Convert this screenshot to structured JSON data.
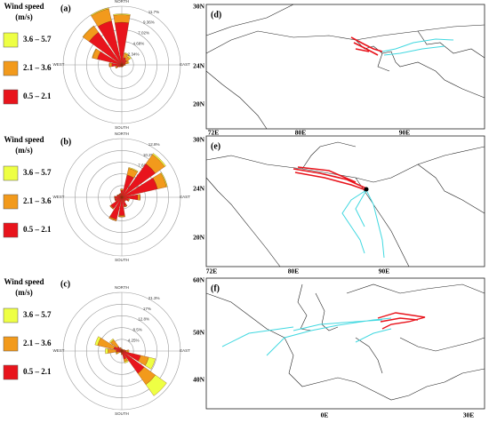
{
  "chart_data": [
    {
      "type": "polar_bar",
      "label": "(a)",
      "legend_title": "Wind speed",
      "legend_unit": "(m/s)",
      "categories": [
        "NORTH",
        null,
        null,
        null,
        "EAST",
        null,
        null,
        null,
        "SOUTH",
        null,
        null,
        null,
        "WEST",
        null,
        null,
        null
      ],
      "series": [
        {
          "name": "0.5 – 2.1",
          "color": "#e8141c",
          "values": [
            8.5,
            1.5,
            1.2,
            0.8,
            0.5,
            0.3,
            0.3,
            0.3,
            0.3,
            0.3,
            0.5,
            1,
            2,
            5,
            8,
            9
          ]
        },
        {
          "name": "2.1 – 3.6",
          "color": "#f29a1c",
          "values": [
            1.5,
            0.8,
            0.8,
            0.5,
            0.2,
            0.1,
            0.1,
            0.1,
            0.1,
            0.1,
            0.1,
            0.3,
            0.5,
            1,
            1.5,
            2.5
          ]
        },
        {
          "name": "3.6 – 5.7",
          "color": "#eeff44",
          "values": [
            0.2,
            0.2,
            0.3,
            0.2,
            0,
            0,
            0,
            0,
            0,
            0,
            0,
            0,
            0,
            0.1,
            0.1,
            0.2
          ]
        }
      ],
      "rlim": [
        0,
        11.7
      ],
      "rticks": [
        {
          "value": 2.34,
          "label": "2.34%"
        },
        {
          "value": 4.68,
          "label": "4.68%"
        },
        {
          "value": 7.02,
          "label": "7.02%"
        },
        {
          "value": 9.36,
          "label": "9.36%"
        },
        {
          "value": 11.7,
          "label": "11.7%"
        }
      ]
    },
    {
      "type": "polar_bar",
      "label": "(b)",
      "legend_title": "Wind speed",
      "legend_unit": "(m/s)",
      "categories": [
        "NORTH",
        null,
        null,
        null,
        "EAST",
        null,
        null,
        null,
        "SOUTH",
        null,
        null,
        null,
        "WEST",
        null,
        null,
        null
      ],
      "series": [
        {
          "name": "0.5 – 2.1",
          "color": "#e8141c",
          "values": [
            1.5,
            5,
            9,
            8,
            3.5,
            1.5,
            1,
            2,
            4,
            5,
            3,
            1.5,
            1.5,
            1,
            0.8,
            0.8
          ]
        },
        {
          "name": "2.1 – 3.6",
          "color": "#f29a1c",
          "values": [
            0.3,
            1.5,
            2.5,
            2,
            0.5,
            0.2,
            0.1,
            0.2,
            0.3,
            0.3,
            0.2,
            0.1,
            0.1,
            0.1,
            0.1,
            0.1
          ]
        },
        {
          "name": "3.6 – 5.7",
          "color": "#eeff44",
          "values": [
            0,
            0.2,
            0.3,
            0.2,
            0,
            0,
            0,
            0,
            0,
            0,
            0,
            0,
            0,
            0,
            0,
            0
          ]
        }
      ],
      "rlim": [
        0,
        12.8
      ],
      "rticks": [
        {
          "value": 2.56,
          "label": "2.56%"
        },
        {
          "value": 5.12,
          "label": "5.1%"
        },
        {
          "value": 7.68,
          "label": "7.68%"
        },
        {
          "value": 10.2,
          "label": "10.2%"
        },
        {
          "value": 12.8,
          "label": "12.8%"
        }
      ]
    },
    {
      "type": "polar_bar",
      "label": "(c)",
      "legend_title": "Wind speed",
      "legend_unit": "(m/s)",
      "categories": [
        "NORTH",
        null,
        null,
        null,
        "EAST",
        null,
        null,
        null,
        "SOUTH",
        null,
        null,
        null,
        "WEST",
        null,
        null,
        null
      ],
      "series": [
        {
          "name": "0.5 – 2.1",
          "color": "#e8141c",
          "values": [
            0.5,
            0.5,
            0.5,
            0.8,
            1.5,
            7,
            10,
            3,
            1,
            0.5,
            0.5,
            1,
            2,
            3,
            2,
            0.8
          ]
        },
        {
          "name": "2.1 – 3.6",
          "color": "#f29a1c",
          "values": [
            0.2,
            0.2,
            0.2,
            0.3,
            0.8,
            3,
            5,
            1,
            0.3,
            0.2,
            0.2,
            1,
            3,
            6,
            3,
            0.5
          ]
        },
        {
          "name": "3.6 – 5.7",
          "color": "#eeff44",
          "values": [
            0,
            0,
            0,
            0,
            0.3,
            2.5,
            5,
            0.5,
            0,
            0,
            0,
            0.3,
            1,
            1,
            0.5,
            0
          ]
        }
      ],
      "rlim": [
        0,
        21.3
      ],
      "rticks": [
        {
          "value": 4.25,
          "label": "4.25%"
        },
        {
          "value": 8.5,
          "label": "8.5%"
        },
        {
          "value": 12.8,
          "label": "12.8%"
        },
        {
          "value": 17,
          "label": "17%"
        },
        {
          "value": 21.3,
          "label": "21.3%"
        }
      ]
    }
  ],
  "maps": [
    {
      "label": "(d)",
      "yticks": [
        "30N",
        "24N",
        "20N"
      ],
      "xticks": [
        "72E",
        "80E",
        "90E"
      ]
    },
    {
      "label": "(e)",
      "yticks": [
        "30N",
        "24N",
        "20N"
      ],
      "xticks": [
        "72E",
        "80E",
        "90E"
      ]
    },
    {
      "label": "(f)",
      "yticks": [
        "60N",
        "50N",
        "40N"
      ],
      "xticks": [
        "0E",
        "30E"
      ]
    }
  ]
}
